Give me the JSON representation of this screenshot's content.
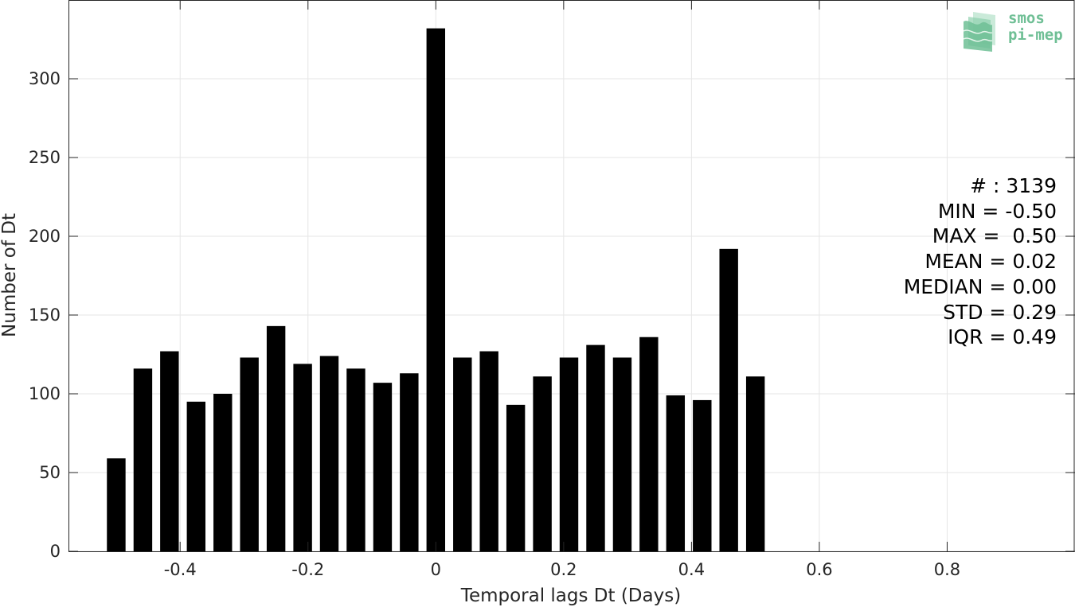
{
  "chart_data": {
    "type": "bar",
    "xlabel": "Temporal lags Dt (Days)",
    "ylabel": "Number of Dt",
    "xlim": [
      -0.5747,
      1.0
    ],
    "ylim": [
      0,
      350
    ],
    "xticks": [
      -0.4,
      -0.2,
      0,
      0.2,
      0.4,
      0.6,
      0.8
    ],
    "xtick_labels": [
      "-0.4",
      "-0.2",
      "0",
      "0.2",
      "0.4",
      "0.6",
      "0.8"
    ],
    "yticks": [
      0,
      50,
      100,
      150,
      200,
      250,
      300
    ],
    "ytick_labels": [
      "0",
      "50",
      "100",
      "150",
      "200",
      "250",
      "300"
    ],
    "grid": true,
    "bin_width": 0.04167,
    "bar_width_fraction": 0.7,
    "x": [
      -0.5,
      -0.4583,
      -0.4167,
      -0.375,
      -0.3333,
      -0.2917,
      -0.25,
      -0.2083,
      -0.1667,
      -0.125,
      -0.0833,
      -0.0417,
      0,
      0.0417,
      0.0833,
      0.125,
      0.1667,
      0.2083,
      0.25,
      0.2917,
      0.3333,
      0.375,
      0.4167,
      0.4583,
      0.5
    ],
    "values": [
      59,
      116,
      127,
      95,
      100,
      123,
      143,
      119,
      124,
      116,
      107,
      113,
      332,
      123,
      127,
      93,
      111,
      123,
      131,
      123,
      136,
      99,
      96,
      192,
      111
    ],
    "bar_color": "#000000"
  },
  "stats": {
    "lines": [
      "# : 3139",
      "MIN = -0.50",
      "MAX =  0.50",
      "MEAN = 0.02",
      "MEDIAN = 0.00",
      "STD = 0.29",
      "IQR = 0.49"
    ]
  },
  "logo": {
    "line1": "smos",
    "line2": "pi-mep",
    "color": "#6fbf95"
  }
}
